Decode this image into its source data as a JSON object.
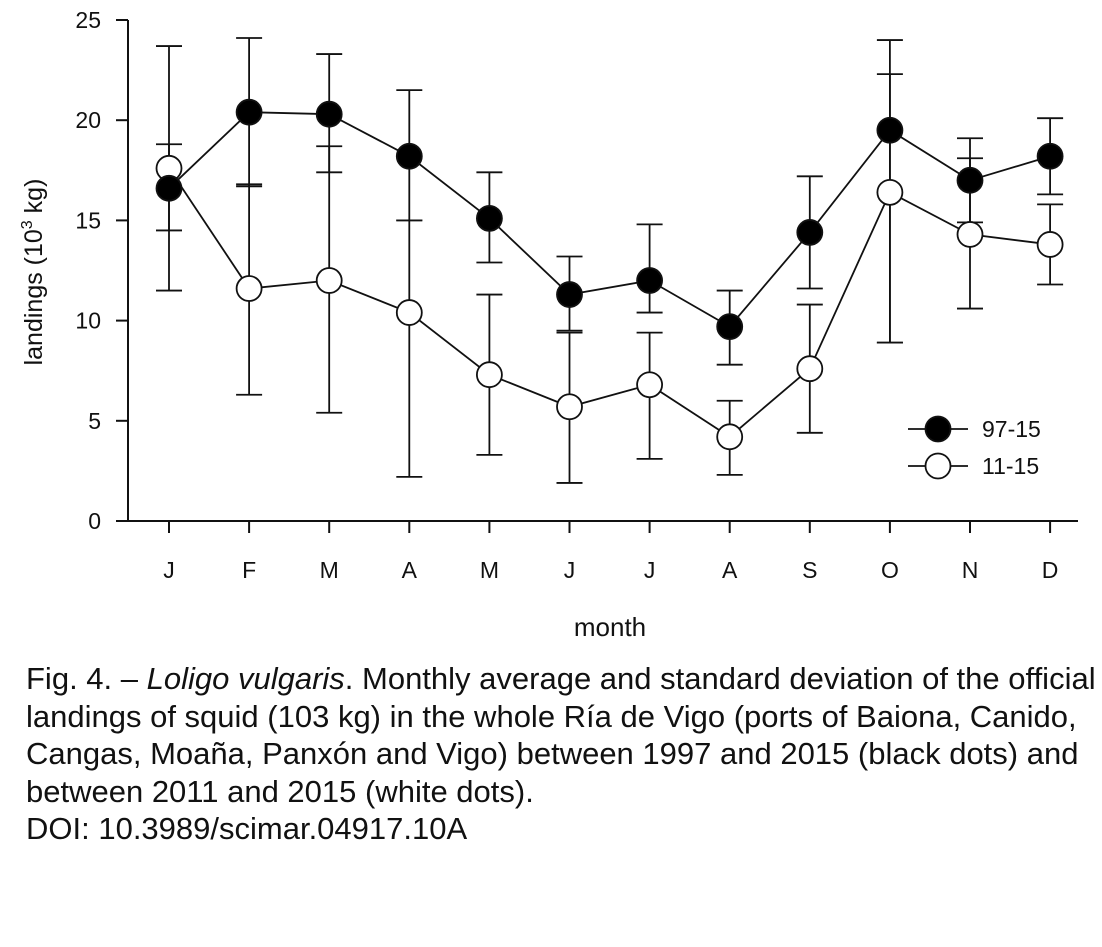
{
  "chart_data": {
    "type": "line",
    "ylabel_main": "landings (10",
    "ylabel_sup": "3",
    "ylabel_tail": " kg)",
    "xlabel": "month",
    "ylim": [
      0,
      25
    ],
    "yticks": [
      "0",
      "5",
      "10",
      "15",
      "20",
      "25"
    ],
    "categories": [
      "J",
      "F",
      "M",
      "A",
      "M",
      "J",
      "J",
      "A",
      "S",
      "O",
      "N",
      "D"
    ],
    "legend_position": "lower-right",
    "series": [
      {
        "name": "97-15",
        "marker": "filled",
        "color": "#000000",
        "values": [
          16.6,
          20.4,
          20.3,
          18.2,
          15.1,
          11.3,
          12.0,
          9.7,
          14.4,
          19.5,
          17.0,
          18.2
        ],
        "err_high": [
          23.7,
          24.1,
          23.3,
          21.5,
          17.4,
          13.2,
          14.8,
          11.5,
          17.2,
          24.0,
          19.1,
          20.1
        ],
        "err_low": [
          14.5,
          16.7,
          17.4,
          15.0,
          12.9,
          9.5,
          10.4,
          7.8,
          11.6,
          8.9,
          14.9,
          16.3
        ]
      },
      {
        "name": "11-15",
        "marker": "open",
        "color": "#ffffff",
        "values": [
          17.6,
          11.6,
          12.0,
          10.4,
          7.3,
          5.7,
          6.8,
          4.2,
          7.6,
          16.4,
          14.3,
          13.8
        ],
        "err_high": [
          18.8,
          16.8,
          18.7,
          15.0,
          11.3,
          9.4,
          9.4,
          6.0,
          10.8,
          22.3,
          18.1,
          15.8
        ],
        "err_low": [
          11.5,
          6.3,
          5.4,
          2.2,
          3.3,
          1.9,
          3.1,
          2.3,
          4.4,
          8.9,
          10.6,
          11.8
        ]
      }
    ]
  },
  "caption": {
    "prefix": "Fig. 4. – ",
    "species": "Loligo vulgaris",
    "text": ". Monthly average and standard deviation of the official landings of squid (103 kg) in the whole Ría de Vigo (ports of Baiona, Canido, Cangas, Moaña, Panxón and Vigo) between 1997 and 2015 (black dots) and between 2011 and 2015 (white dots).",
    "doi": "DOI: 10.3989/scimar.04917.10A"
  }
}
